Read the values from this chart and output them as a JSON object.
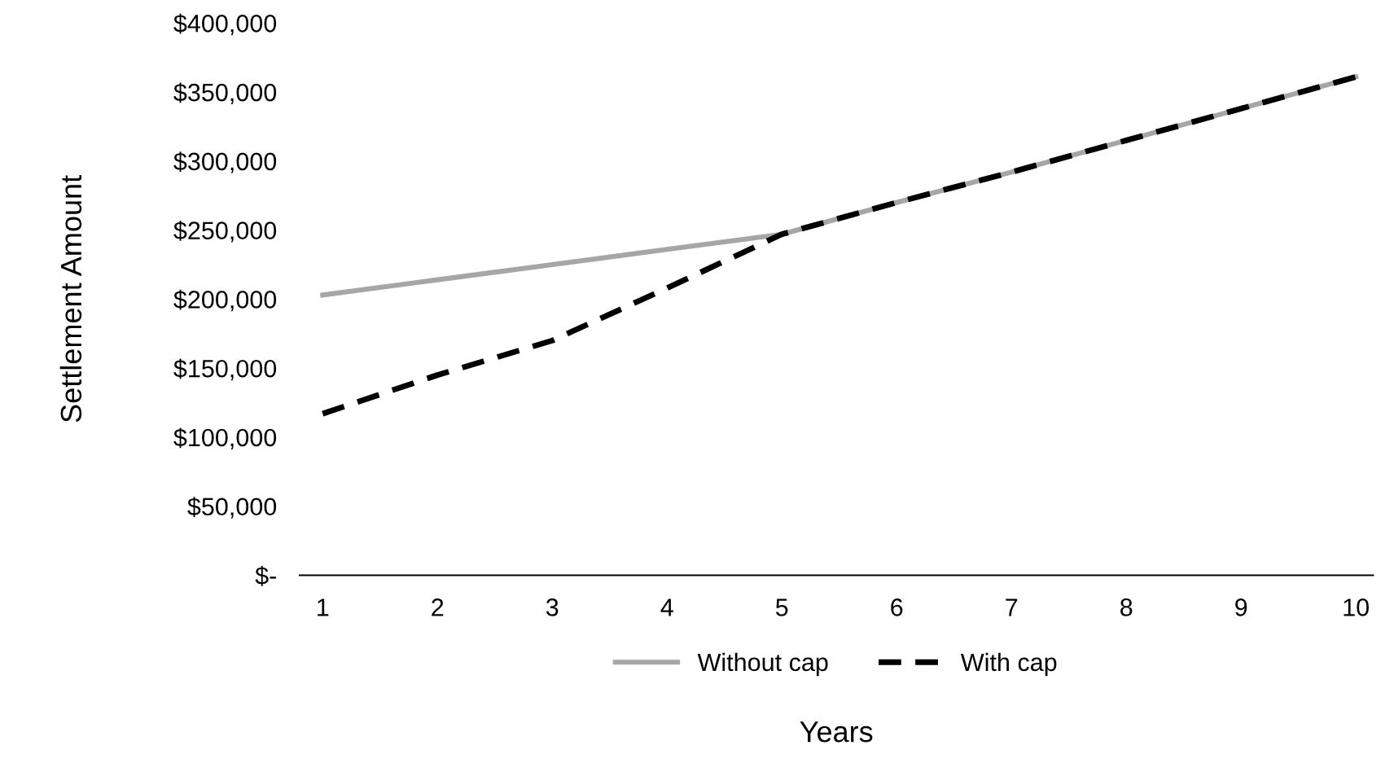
{
  "chart_data": {
    "type": "line",
    "xlabel": "Years",
    "ylabel": "Settlement Amount",
    "categories": [
      "1",
      "2",
      "3",
      "4",
      "5",
      "6",
      "7",
      "8",
      "9",
      "10"
    ],
    "series": [
      {
        "name": "Without cap",
        "color": "#a6a6a6",
        "line_style": "solid",
        "values": [
          203000,
          214000,
          225000,
          236000,
          247000,
          270000,
          292000,
          315000,
          338000,
          361000
        ]
      },
      {
        "name": "With cap",
        "color": "#000000",
        "line_style": "dashed",
        "values": [
          117000,
          145000,
          170000,
          208000,
          247000,
          270000,
          292000,
          315000,
          338000,
          361000
        ]
      }
    ],
    "ylim": [
      0,
      400000
    ],
    "yticks": [
      {
        "value": 0,
        "label": "$-"
      },
      {
        "value": 50000,
        "label": "$50,000"
      },
      {
        "value": 100000,
        "label": "$100,000"
      },
      {
        "value": 150000,
        "label": "$150,000"
      },
      {
        "value": 200000,
        "label": "$200,000"
      },
      {
        "value": 250000,
        "label": "$250,000"
      },
      {
        "value": 300000,
        "label": "$300,000"
      },
      {
        "value": 350000,
        "label": "$350,000"
      },
      {
        "value": 400000,
        "label": "$400,000"
      }
    ],
    "grid": false,
    "legend": "bottom",
    "marker": "none"
  }
}
